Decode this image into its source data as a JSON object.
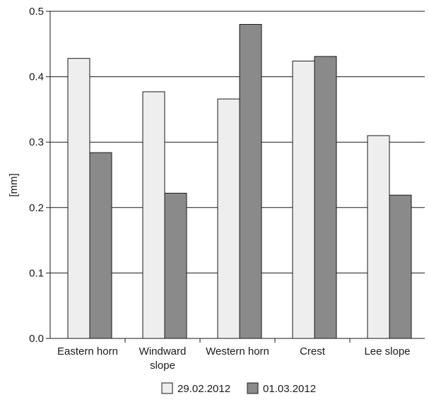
{
  "chart_data": {
    "type": "bar",
    "categories": [
      [
        "Eastern horn"
      ],
      [
        "Windward",
        "slope"
      ],
      [
        "Western horn"
      ],
      [
        "Crest"
      ],
      [
        "Lee slope"
      ]
    ],
    "series": [
      {
        "name": "29.02.2012",
        "color": "#eeeeee",
        "values": [
          0.428,
          0.377,
          0.366,
          0.424,
          0.31
        ]
      },
      {
        "name": "01.03.2012",
        "color": "#8a8a8a",
        "values": [
          0.284,
          0.222,
          0.48,
          0.431,
          0.219
        ]
      }
    ],
    "ylabel": "[mm]",
    "ylim": [
      0,
      0.5
    ],
    "yticks": [
      "0.0",
      "0.1",
      "0.2",
      "0.3",
      "0.4",
      "0.5"
    ],
    "grid": true,
    "legend_position": "bottom-center"
  }
}
